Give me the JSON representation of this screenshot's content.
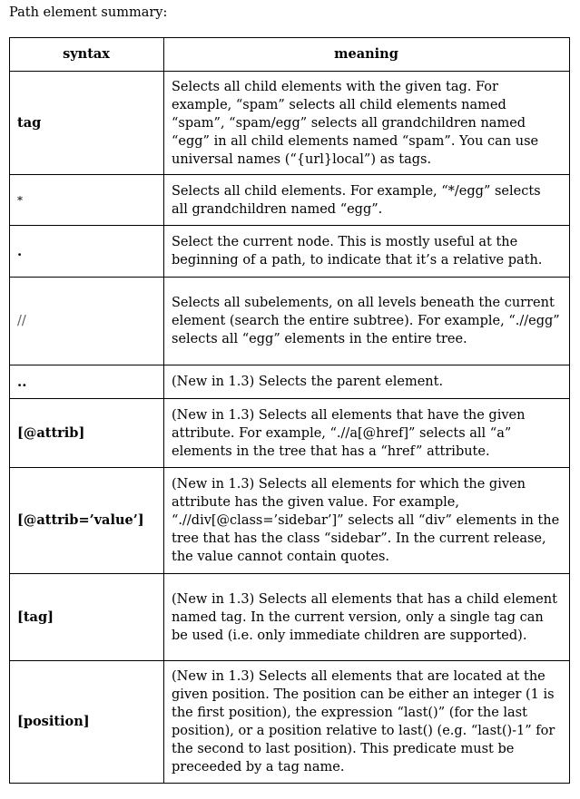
{
  "caption": "Path element summary:",
  "table": {
    "headers": {
      "syntax": "syntax",
      "meaning": "meaning"
    },
    "rows": [
      {
        "syntax": "tag",
        "meaning": "Selects all child elements with the given tag. For example, “spam” selects all child elements named “spam”, “spam/egg” selects all grandchildren named “egg” in all child elements named “spam”. You can use universal names (“{url}local”) as tags."
      },
      {
        "syntax": "*",
        "meaning": "Selects all child elements. For example, “*/egg” selects all grandchildren named “egg”."
      },
      {
        "syntax": ".",
        "meaning": "Select the current node. This is mostly useful at the beginning of a path, to indicate that it’s a relative path."
      },
      {
        "syntax": "//",
        "meaning": "Selects all subelements, on all levels beneath the current element (search the entire subtree). For example, “.//egg” selects all “egg” elements in the entire tree."
      },
      {
        "syntax": "..",
        "meaning": "(New in 1.3) Selects the parent element."
      },
      {
        "syntax": "[@attrib]",
        "meaning": "(New in 1.3) Selects all elements that have the given attribute. For example, “.//a[@href]” selects all “a” elements in the tree that has a “href” attribute."
      },
      {
        "syntax": "[@attrib=’value’]",
        "meaning": "(New in 1.3) Selects all elements for which the given attribute has the given value. For example, “.//div[@class=’sidebar’]” selects all “div” elements in the tree that has the class “sidebar”. In the current release, the value cannot contain quotes."
      },
      {
        "syntax": "[tag]",
        "meaning": "(New in 1.3) Selects all elements that has a child element named tag. In the current version, only a single tag can be used (i.e. only immediate children are supported)."
      },
      {
        "syntax": "[position]",
        "meaning": "(New in 1.3) Selects all elements that are located at the given position. The position can be either an integer (1 is the first position), the expression “last()” (for the last position), or a position relative to last() (e.g. “last()-1” for the second to last position). This predicate must be preceeded by a tag name."
      }
    ]
  }
}
